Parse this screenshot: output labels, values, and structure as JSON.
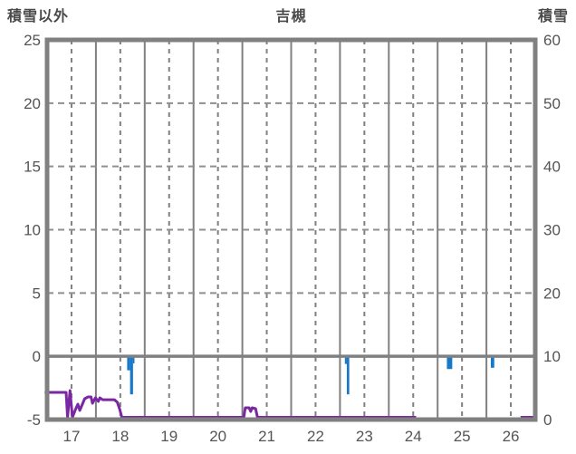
{
  "header": {
    "left_axis_title": "積雪以外",
    "title": "吉槻",
    "right_axis_title": "積雪"
  },
  "colors": {
    "grid": "#808080",
    "grid_dashed_h": "#8f8f8f",
    "zero_line": "#808080",
    "border": "#808080",
    "line": "#7a28a2",
    "bar": "#1778c8",
    "tick_text": "#555555",
    "background": "#ffffff"
  },
  "chart_data": {
    "type": "line",
    "title": "吉槻",
    "left_axis": {
      "label": "積雪以外",
      "min": -5,
      "max": 25,
      "tick_step": 5,
      "ticks": [
        "25",
        "20",
        "15",
        "10",
        "5",
        "0",
        "-5"
      ],
      "tick_values": [
        25,
        20,
        15,
        10,
        5,
        0,
        -5
      ]
    },
    "right_axis": {
      "label": "積雪",
      "min": 0,
      "max": 60,
      "tick_step": 10,
      "ticks": [
        "60",
        "50",
        "40",
        "30",
        "20",
        "10",
        "0"
      ],
      "tick_values": [
        60,
        50,
        40,
        30,
        20,
        10,
        0
      ]
    },
    "x_axis": {
      "day_start": 17,
      "day_end": 27,
      "tick_labels": [
        "17",
        "18",
        "19",
        "20",
        "21",
        "22",
        "23",
        "24",
        "25",
        "26"
      ],
      "tick_day_positions": [
        17.5,
        18.5,
        19.5,
        20.5,
        21.5,
        22.5,
        23.5,
        24.5,
        25.5,
        26.5
      ],
      "solid_gridline_days": [
        18,
        19,
        20,
        21,
        22,
        23,
        24,
        25,
        26
      ],
      "dashed_gridline_days": [
        17.5,
        18.5,
        19.5,
        20.5,
        21.5,
        22.5,
        23.5,
        24.5,
        25.5,
        26.5
      ]
    },
    "horizontal_dashed_gridlines_left_values": [
      20,
      15,
      10,
      5
    ],
    "zero_line_left_value": 0,
    "grid": true,
    "legend": "none",
    "series": [
      {
        "name": "non-snow-element-line",
        "type": "line",
        "axis": "left",
        "color": "#7a28a2",
        "segments": [
          [
            [
              16.95,
              -2.85
            ],
            [
              17.39,
              -2.85
            ],
            [
              17.42,
              -4.86
            ],
            [
              17.47,
              -2.71
            ],
            [
              17.52,
              -4.93
            ],
            [
              17.58,
              -4.21
            ],
            [
              17.63,
              -3.78
            ],
            [
              17.67,
              -4.28
            ],
            [
              17.77,
              -3.35
            ],
            [
              17.84,
              -3.21
            ],
            [
              17.9,
              -3.21
            ],
            [
              17.93,
              -3.71
            ],
            [
              17.99,
              -3.28
            ],
            [
              18.05,
              -3.57
            ],
            [
              18.08,
              -3.28
            ],
            [
              18.14,
              -3.43
            ],
            [
              18.38,
              -3.43
            ],
            [
              18.44,
              -3.64
            ],
            [
              18.49,
              -4.21
            ],
            [
              18.53,
              -4.86
            ],
            [
              18.59,
              -5.0
            ],
            [
              21.03,
              -5.0
            ],
            [
              21.06,
              -4.07
            ],
            [
              21.14,
              -4.07
            ],
            [
              21.17,
              -4.36
            ],
            [
              21.2,
              -4.07
            ],
            [
              21.27,
              -4.14
            ],
            [
              21.31,
              -5.0
            ],
            [
              24.56,
              -5.0
            ]
          ],
          [
            [
              26.7,
              -5.0
            ],
            [
              26.96,
              -5.0
            ]
          ]
        ]
      },
      {
        "name": "precipitation-bars",
        "type": "bar",
        "axis": "left",
        "color": "#1778c8",
        "note": "bars hang downward from the 0 line; depth in left-axis units",
        "bars": [
          {
            "d0": 18.64,
            "d1": 18.7,
            "depth": 1.0
          },
          {
            "d0": 18.7,
            "d1": 18.76,
            "depth": 2.9
          },
          {
            "d0": 18.76,
            "d1": 18.79,
            "depth": 0.45
          },
          {
            "d0": 23.1,
            "d1": 23.14,
            "depth": 0.5
          },
          {
            "d0": 23.14,
            "d1": 23.19,
            "depth": 2.9
          },
          {
            "d0": 25.19,
            "d1": 25.3,
            "depth": 0.9
          },
          {
            "d0": 26.09,
            "d1": 26.16,
            "depth": 0.8
          }
        ]
      }
    ]
  }
}
